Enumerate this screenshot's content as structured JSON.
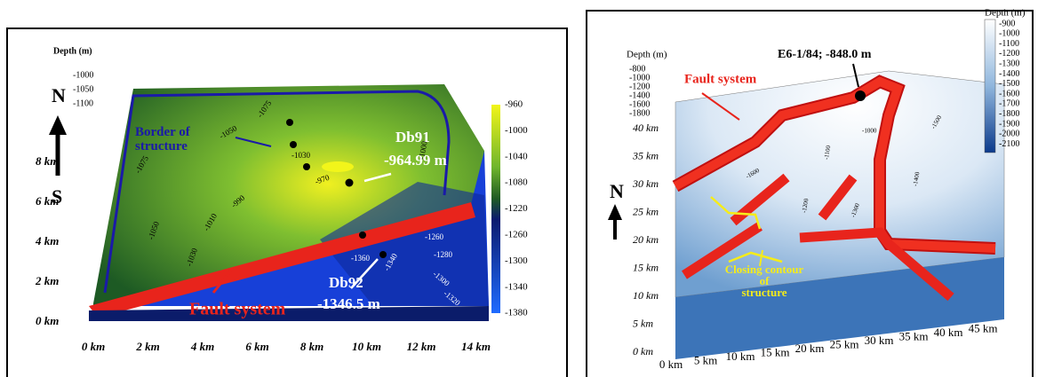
{
  "left_map": {
    "depth_label": "Depth (m)",
    "depth_ticks": [
      "-1000",
      "-1050",
      "-1100"
    ],
    "north": "N",
    "south": "S",
    "border_label": "Border of structure",
    "well_1": {
      "name": "Db91",
      "depth": "-964.99 m"
    },
    "well_2": {
      "name": "Db92",
      "depth": "-1346.5 m"
    },
    "fault_label": "Fault system",
    "y_labels": [
      "0 km",
      "2 km",
      "4 km",
      "6 km",
      "8 km"
    ],
    "x_labels": [
      "0 km",
      "2 km",
      "4 km",
      "6 km",
      "8 km",
      "10 km",
      "12 km",
      "14 km"
    ],
    "colorbar_labels": [
      "-960",
      "-1000",
      "-1040",
      "-1080",
      "-1220",
      "-1260",
      "-1300",
      "-1340",
      "-1380"
    ],
    "contour_labels": [
      "-1075",
      "-1050",
      "-1030",
      "-970",
      "-990",
      "-1010",
      "-1030",
      "-1050",
      "-1075",
      "-1000",
      "-1260",
      "-1280",
      "-1300",
      "-1320",
      "-1340",
      "-1360"
    ]
  },
  "right_map": {
    "depth_label": "Depth (m)",
    "depth_ticks": [
      "-800",
      "-1000",
      "-1200",
      "-1400",
      "-1600",
      "-1800"
    ],
    "well": "E6-1/84; -848.0 m",
    "fault_label": "Fault system",
    "closing_label": "Closing contour of structure",
    "north": "N",
    "y_labels": [
      "0 km",
      "5 km",
      "10 km",
      "15 km",
      "20 km",
      "25 km",
      "30 km",
      "35 km",
      "40 km"
    ],
    "x_labels": [
      "0 km",
      "5 km",
      "10 km",
      "15 km",
      "20 km",
      "25 km",
      "30 km",
      "35 km",
      "40 km",
      "45 km"
    ],
    "colorbar_title": "Depth (m)",
    "colorbar_labels": [
      "-900",
      "-1000",
      "-1100",
      "-1200",
      "-1300",
      "-1400",
      "-1500",
      "-1600",
      "-1700",
      "-1800",
      "-1900",
      "-2000",
      "-2100"
    ],
    "contour_labels": [
      "-1000",
      "-1100",
      "-1200",
      "-1300",
      "-1400",
      "-1500",
      "-1600"
    ]
  }
}
